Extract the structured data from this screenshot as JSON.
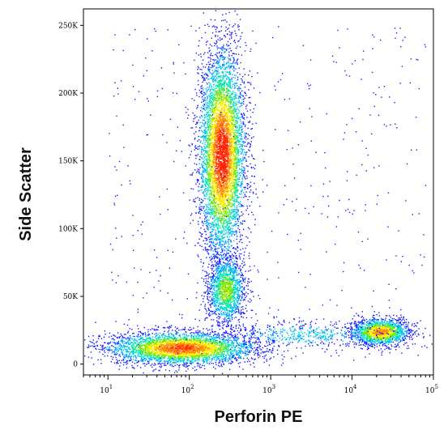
{
  "chart_data": {
    "type": "scatter",
    "subtype": "flow-cytometry-density-dot-plot",
    "title": "",
    "xlabel": "Perforin PE",
    "ylabel": "Side Scatter",
    "x_scale": "log",
    "xlim": [
      5,
      100000
    ],
    "ylim": [
      -8000,
      262144
    ],
    "grid": false,
    "legend": "none",
    "x_ticks": [
      {
        "value": 10,
        "base": "10",
        "exp": "1"
      },
      {
        "value": 100,
        "base": "10",
        "exp": "2"
      },
      {
        "value": 1000,
        "base": "10",
        "exp": "3"
      },
      {
        "value": 10000,
        "base": "10",
        "exp": "4"
      },
      {
        "value": 100000,
        "base": "10",
        "exp": "5"
      }
    ],
    "y_ticks": [
      {
        "value": 0,
        "label": "0"
      },
      {
        "value": 50000,
        "label": "50K"
      },
      {
        "value": 100000,
        "label": "100K"
      },
      {
        "value": 150000,
        "label": "150K"
      },
      {
        "value": 200000,
        "label": "200K"
      },
      {
        "value": 250000,
        "label": "250K"
      }
    ],
    "density_colors": [
      "#1a1aff",
      "#00b4ff",
      "#00e6b4",
      "#7ce600",
      "#ffee00",
      "#ff8c00",
      "#ff2200"
    ],
    "populations": [
      {
        "x_center": 250,
        "y_center": 155000,
        "x_spread_decades": 0.14,
        "y_spread": 38000,
        "count": 5500,
        "peak_density": 1.0
      },
      {
        "x_center": 280,
        "y_center": 55000,
        "x_spread_decades": 0.12,
        "y_spread": 13000,
        "count": 1400,
        "peak_density": 0.55
      },
      {
        "x_center": 80,
        "y_center": 12000,
        "x_spread_decades": 0.45,
        "y_spread": 6000,
        "count": 3500,
        "peak_density": 0.9
      },
      {
        "x_center": 22000,
        "y_center": 24000,
        "x_spread_decades": 0.18,
        "y_spread": 5000,
        "count": 1500,
        "peak_density": 0.8
      },
      {
        "x_center": 2500,
        "y_center": 22000,
        "x_spread_decades": 0.55,
        "y_spread": 5000,
        "count": 500,
        "peak_density": 0.3
      }
    ]
  }
}
